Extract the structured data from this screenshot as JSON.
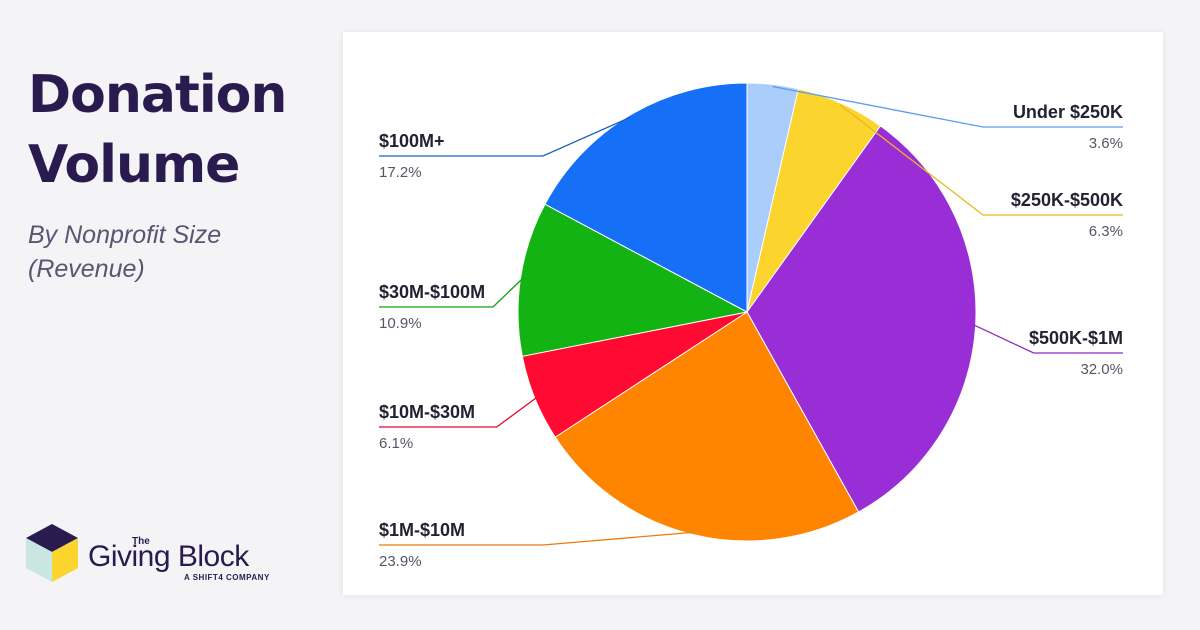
{
  "heading": {
    "title_line1": "Donation",
    "title_line2": "Volume",
    "subtitle_line1": "By Nonprofit Size",
    "subtitle_line2": "(Revenue)"
  },
  "logo": {
    "the": "The",
    "name": "Giving Block",
    "tagline": "A SHIFT4 COMPANY"
  },
  "chart_data": {
    "type": "pie",
    "title": "Donation Volume",
    "subtitle": "By Nonprofit Size (Revenue)",
    "slices": [
      {
        "label": "Under $250K",
        "value": 3.6,
        "pct_label": "3.6%",
        "color": "#abcdfb",
        "line_color": "#5b9cf0"
      },
      {
        "label": "$250K-$500K",
        "value": 6.3,
        "pct_label": "6.3%",
        "color": "#fbd42e",
        "line_color": "#e8b820"
      },
      {
        "label": "$500K-$1M",
        "value": 32.0,
        "pct_label": "32.0%",
        "color": "#9a2ed6",
        "line_color": "#8a2ac4"
      },
      {
        "label": "$1M-$10M",
        "value": 23.9,
        "pct_label": "23.9%",
        "color": "#ff8400",
        "line_color": "#ee7a10"
      },
      {
        "label": "$10M-$30M",
        "value": 6.1,
        "pct_label": "6.1%",
        "color": "#ff0a33",
        "line_color": "#e00a30"
      },
      {
        "label": "$30M-$100M",
        "value": 10.9,
        "pct_label": "10.9%",
        "color": "#12b312",
        "line_color": "#10a010"
      },
      {
        "label": "$100M+",
        "value": 17.2,
        "pct_label": "17.2%",
        "color": "#1570f7",
        "line_color": "#1c5fbf"
      }
    ]
  }
}
